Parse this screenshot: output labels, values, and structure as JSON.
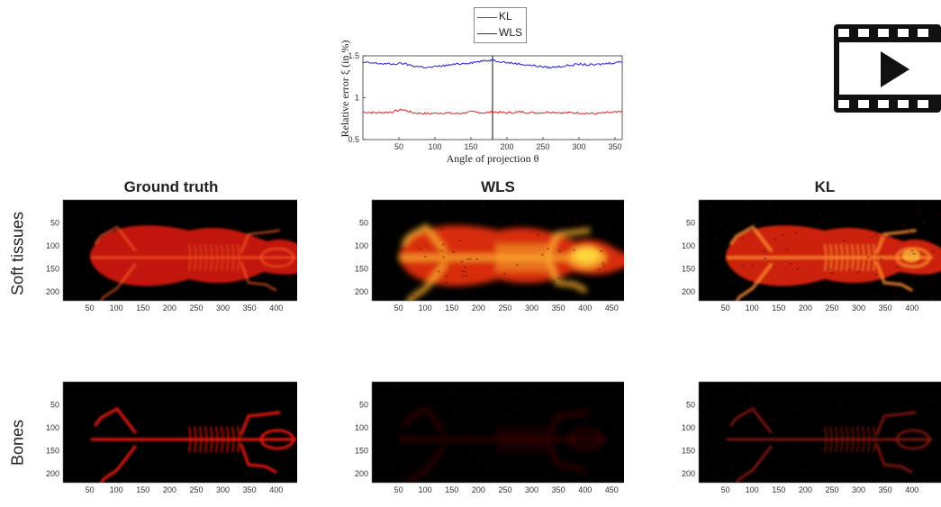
{
  "legend": {
    "items": [
      {
        "label": "KL",
        "color": "#e02020"
      },
      {
        "label": "WLS",
        "color": "#2020e0"
      }
    ]
  },
  "chart_data": [
    {
      "type": "line",
      "title": "",
      "xlabel": "Angle of projection θ",
      "ylabel": "Relative error ξ (in %)",
      "xlim": [
        0,
        360
      ],
      "ylim": [
        0.5,
        1.5
      ],
      "xticks": [
        50,
        100,
        150,
        200,
        250,
        300,
        350
      ],
      "yticks": [
        0.5,
        1,
        1.5
      ],
      "ytick_labels": [
        "0.5",
        "1",
        "1.5"
      ],
      "vertical_line_x": 180,
      "legend_position": "top",
      "series": [
        {
          "name": "KL",
          "color": "#e02020",
          "x": [
            0,
            20,
            40,
            55,
            70,
            90,
            110,
            130,
            150,
            170,
            180,
            200,
            220,
            240,
            260,
            280,
            300,
            320,
            340,
            360
          ],
          "y": [
            0.83,
            0.82,
            0.83,
            0.86,
            0.82,
            0.81,
            0.82,
            0.81,
            0.83,
            0.82,
            0.83,
            0.82,
            0.83,
            0.82,
            0.83,
            0.82,
            0.82,
            0.81,
            0.82,
            0.83
          ]
        },
        {
          "name": "WLS",
          "color": "#2020e0",
          "x": [
            0,
            20,
            40,
            55,
            70,
            90,
            110,
            130,
            150,
            170,
            180,
            200,
            220,
            240,
            260,
            280,
            300,
            320,
            340,
            360
          ],
          "y": [
            1.42,
            1.41,
            1.4,
            1.41,
            1.38,
            1.36,
            1.38,
            1.4,
            1.42,
            1.44,
            1.45,
            1.42,
            1.4,
            1.38,
            1.36,
            1.38,
            1.4,
            1.39,
            1.41,
            1.43
          ]
        }
      ]
    },
    {
      "type": "heatmap",
      "grid_titles": [
        "Ground truth",
        "WLS",
        "KL"
      ],
      "grid_rows": [
        "Soft tissues",
        "Bones"
      ],
      "xticks": [
        50,
        100,
        150,
        200,
        250,
        300,
        350,
        400,
        450
      ],
      "yticks": [
        50,
        100,
        150,
        200
      ],
      "xlim": [
        0,
        490
      ],
      "ylim": [
        0,
        220
      ],
      "colormap": "hot"
    }
  ]
}
